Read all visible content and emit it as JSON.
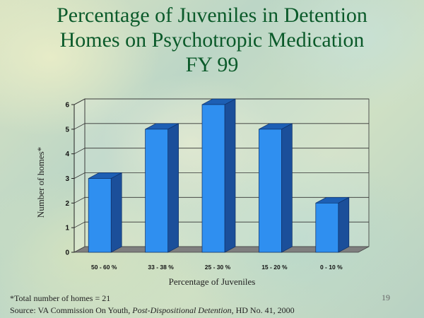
{
  "slide": {
    "title_lines": [
      "Percentage of Juveniles in Detention",
      "Homes on Psychotropic Medication",
      "FY 99"
    ],
    "footnote": "*Total number of homes = 21",
    "source_prefix": "Source: VA Commission On Youth, ",
    "source_italic": "Post-Dispositional Detention",
    "source_suffix": ", HD No. 41, 2000",
    "page_number": "19"
  },
  "chart_data": {
    "type": "bar",
    "title": "Percentage of Juveniles in Detention Homes on Psychotropic Medication FY 99",
    "xlabel": "Percentage of Juveniles",
    "ylabel": "Number of homes*",
    "categories": [
      "50 - 60 %",
      "33 - 38 %",
      "25 - 30 %",
      "15 - 20 %",
      "0 - 10 %"
    ],
    "values": [
      3,
      5,
      6,
      5,
      2
    ],
    "ylim": [
      0,
      6
    ],
    "yticks": [
      0,
      1,
      2,
      3,
      4,
      5,
      6
    ],
    "grid": true,
    "bar_color": "#2f8ff0",
    "bar_side_color": "#1b4f9a",
    "bar_top_color": "#1d5fb4"
  }
}
